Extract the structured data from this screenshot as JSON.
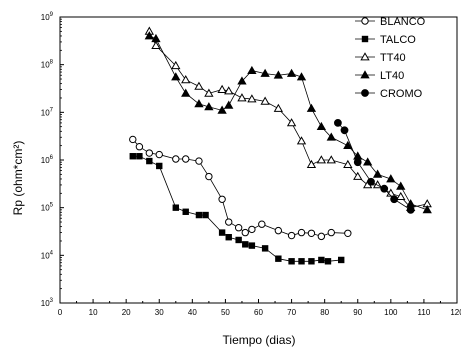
{
  "chart_data": {
    "type": "scatter",
    "xlabel": "Tiempo (dias)",
    "ylabel": "Rp (ohm*cm²)",
    "xlim": [
      0,
      120
    ],
    "ylim": [
      1000,
      1000000000
    ],
    "log_y": true,
    "grid": false,
    "legend_position": "top-right",
    "x_ticks": [
      "0",
      "10",
      "20",
      "30",
      "40",
      "50",
      "60",
      "70",
      "80",
      "90",
      "100",
      "110",
      "120"
    ],
    "y_ticks": [
      {
        "base": "10",
        "exp": "3",
        "value": 1000
      },
      {
        "base": "10",
        "exp": "4",
        "value": 10000
      },
      {
        "base": "10",
        "exp": "5",
        "value": 100000
      },
      {
        "base": "10",
        "exp": "6",
        "value": 1000000
      },
      {
        "base": "10",
        "exp": "7",
        "value": 10000000
      },
      {
        "base": "10",
        "exp": "8",
        "value": 100000000
      },
      {
        "base": "10",
        "exp": "9",
        "value": 1000000000
      }
    ],
    "series": [
      {
        "name": "BLANCO",
        "marker": "circle-open",
        "x": [
          22,
          24,
          27,
          30,
          35,
          38,
          42,
          45,
          49,
          51,
          54,
          56,
          58,
          61,
          66,
          70,
          73,
          76,
          79,
          82,
          87
        ],
        "y": [
          2700000,
          1900000,
          1400000,
          1300000,
          1050000,
          1050000,
          950000,
          450000,
          150000,
          50000,
          38000,
          30000,
          35000,
          45000,
          33000,
          26000,
          30000,
          29000,
          25000,
          30000,
          29000
        ]
      },
      {
        "name": "TALCO",
        "marker": "square-filled",
        "x": [
          22,
          24,
          27,
          30,
          35,
          38,
          42,
          44,
          49,
          51,
          54,
          56,
          58,
          62,
          66,
          70,
          73,
          76,
          79,
          81,
          85
        ],
        "y": [
          1200000,
          1200000,
          950000,
          750000,
          100000,
          82000,
          70000,
          70000,
          30000,
          24000,
          21000,
          17000,
          16000,
          14000,
          8500,
          7500,
          7500,
          7500,
          8000,
          7500,
          8000
        ]
      },
      {
        "name": "TT40",
        "marker": "triangle-open",
        "x": [
          27,
          29,
          35,
          38,
          42,
          45,
          49,
          51,
          55,
          58,
          62,
          66,
          70,
          73,
          76,
          79,
          82,
          87,
          90,
          93,
          96,
          100,
          103,
          106,
          111
        ],
        "y": [
          500000000,
          250000000,
          95000000,
          48000000,
          35000000,
          25000000,
          30000000,
          28000000,
          20000000,
          19000000,
          17000000,
          12000000,
          6000000,
          2500000,
          800000,
          1000000,
          1000000,
          800000,
          450000,
          300000,
          300000,
          200000,
          170000,
          100000,
          120000
        ]
      },
      {
        "name": "LT40",
        "marker": "triangle-filled",
        "x": [
          27,
          29,
          35,
          38,
          42,
          45,
          49,
          51,
          55,
          58,
          62,
          66,
          70,
          73,
          76,
          79,
          82,
          87,
          90,
          93,
          96,
          100,
          103,
          106,
          111
        ],
        "y": [
          400000000,
          350000000,
          55000000,
          25000000,
          15000000,
          13000000,
          11000000,
          14000000,
          45000000,
          75000000,
          65000000,
          60000000,
          65000000,
          55000000,
          12000000,
          5000000,
          3000000,
          2000000,
          1200000,
          900000,
          500000,
          400000,
          280000,
          120000,
          90000
        ]
      },
      {
        "name": "CROMO",
        "marker": "circle-filled",
        "x": [
          84,
          86,
          90,
          94,
          98,
          101,
          106
        ],
        "y": [
          6000000,
          4200000,
          900000,
          350000,
          250000,
          150000,
          90000
        ]
      }
    ]
  }
}
